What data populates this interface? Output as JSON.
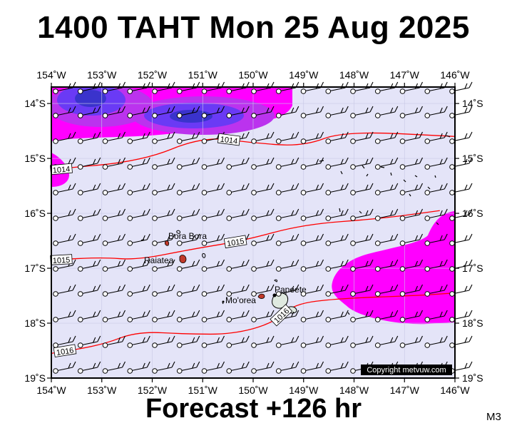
{
  "title": "1400 TAHT Mon 25 Aug 2025",
  "footer": "Forecast +126 hr",
  "model_code": "M3",
  "copyright": "Copyright metvuw.com",
  "map": {
    "lon_min": -154,
    "lon_max": -146,
    "lat_min": -19,
    "lat_max": -13.7,
    "lon_ticks": [
      "154˚W",
      "153˚W",
      "152˚W",
      "151˚W",
      "150˚W",
      "149˚W",
      "148˚W",
      "147˚W",
      "146˚W"
    ],
    "lat_ticks": [
      "14˚S",
      "15˚S",
      "16˚S",
      "17˚S",
      "18˚S",
      "19˚S"
    ],
    "isobars": [
      {
        "label": "1014",
        "points": [
          [
            -154,
            -15.2
          ],
          [
            -152.2,
            -15.05
          ],
          [
            -151,
            -14.6
          ],
          [
            -150,
            -14.72
          ],
          [
            -149,
            -14.78
          ],
          [
            -148.2,
            -14.5
          ],
          [
            -146,
            -14.6
          ]
        ]
      },
      {
        "label": "1015",
        "points": [
          [
            -154,
            -16.85
          ],
          [
            -153,
            -16.8
          ],
          [
            -152.3,
            -16.85
          ],
          [
            -151.2,
            -16.65
          ],
          [
            -150.2,
            -16.5
          ],
          [
            -149,
            -16.2
          ],
          [
            -147.5,
            -16.1
          ],
          [
            -146.3,
            -15.95
          ]
        ]
      },
      {
        "label": "1016",
        "points": [
          [
            -154,
            -18.55
          ],
          [
            -153,
            -18.4
          ],
          [
            -152.3,
            -18.15
          ],
          [
            -151.3,
            -18.2
          ],
          [
            -150.4,
            -18.2
          ],
          [
            -149.6,
            -18
          ],
          [
            -149.2,
            -17.65
          ],
          [
            -148.3,
            -17.55
          ],
          [
            -146.8,
            -17.5
          ],
          [
            -146,
            -17.45
          ]
        ]
      }
    ],
    "places": [
      {
        "name": "Bora Bora",
        "lon": -151.74,
        "lat": -16.5
      },
      {
        "name": "Raiatea",
        "lon": -151.45,
        "lat": -16.82
      },
      {
        "name": "Mo'orea",
        "lon": -149.83,
        "lat": -17.53
      },
      {
        "name": "Papeete",
        "lon": -149.57,
        "lat": -17.53
      }
    ],
    "colors": {
      "background": "#e4e4f8",
      "rain_light": "#ff00ff",
      "rain_medium": "#cc33ee",
      "rain_heavy": "#6633ff",
      "rain_heaviest": "#3333cc",
      "isobar": "#ff0000",
      "land": "#c0392b"
    }
  }
}
